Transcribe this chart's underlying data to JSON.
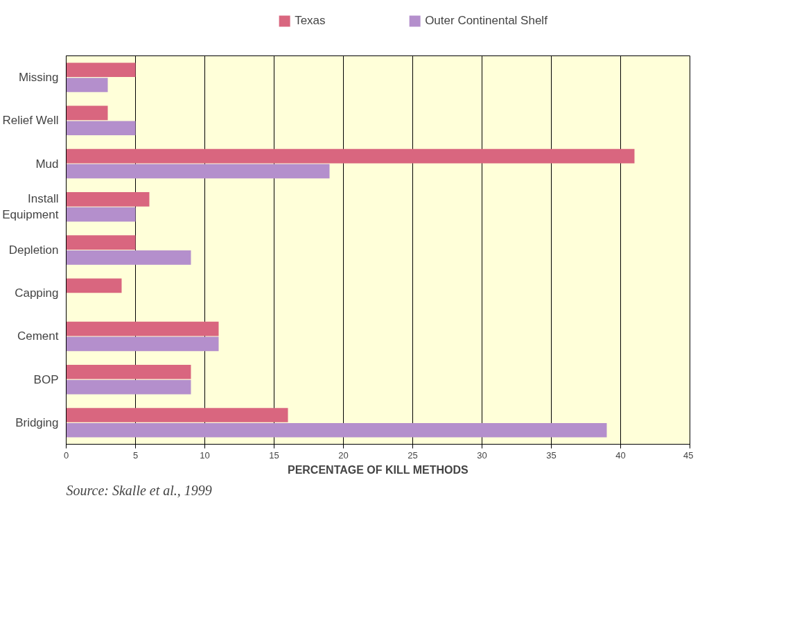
{
  "chart_data": {
    "type": "bar",
    "orientation": "horizontal",
    "xlabel": "PERCENTAGE OF KILL METHODS",
    "categories": [
      "Missing",
      "Relief Well",
      "Mud",
      "Install Equipment",
      "Depletion",
      "Capping",
      "Cement",
      "BOP",
      "Bridging"
    ],
    "series": [
      {
        "name": "Texas",
        "color": "#d9667f",
        "values": [
          5,
          3,
          41,
          6,
          5,
          4,
          11,
          9,
          16
        ]
      },
      {
        "name": "Outer Continental Shelf",
        "color": "#b48fcc",
        "values": [
          3,
          5,
          19,
          5,
          9,
          0,
          11,
          9,
          39
        ]
      }
    ],
    "xlim": [
      0,
      45
    ],
    "xticks": [
      0,
      5,
      10,
      15,
      20,
      25,
      30,
      35,
      40,
      45
    ],
    "grid": "x",
    "legend": "top",
    "annotations": [
      "Source: Skalle et al., 1999"
    ]
  }
}
